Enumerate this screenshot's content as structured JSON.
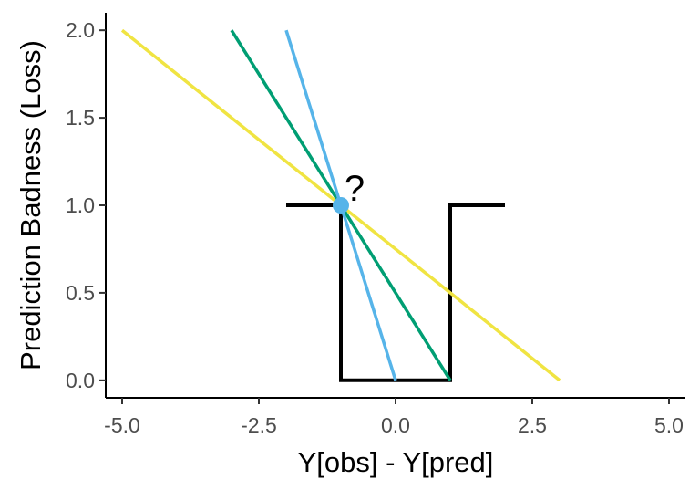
{
  "chart_data": {
    "type": "line",
    "title": "",
    "xlabel": "Y[obs] - Y[pred]",
    "ylabel": "Prediction Badness (Loss)",
    "xlim": [
      -5.3,
      5.3
    ],
    "ylim": [
      -0.1,
      2.1
    ],
    "xticks": [
      -5.0,
      -2.5,
      0.0,
      2.5,
      5.0
    ],
    "xtick_labels": [
      "-5.0",
      "-2.5",
      "0.0",
      "2.5",
      "5.0"
    ],
    "yticks": [
      0.0,
      0.5,
      1.0,
      1.5,
      2.0
    ],
    "ytick_labels": [
      "0.0",
      "0.5",
      "1.0",
      "1.5",
      "2.0"
    ],
    "grid": false,
    "legend": "none",
    "series": [
      {
        "color": "#000000",
        "x": [
          -2,
          -1,
          -1,
          1,
          1,
          2
        ],
        "y": [
          1,
          1,
          0,
          0,
          1,
          1
        ]
      },
      {
        "color": "#F0E442",
        "x": [
          -5,
          3
        ],
        "y": [
          2,
          0
        ]
      },
      {
        "color": "#009E73",
        "x": [
          -3,
          1
        ],
        "y": [
          2,
          0
        ]
      },
      {
        "color": "#56B4E9",
        "x": [
          -2,
          0
        ],
        "y": [
          2,
          0
        ]
      }
    ],
    "point": {
      "x": -1,
      "y": 1,
      "color": "#56B4E9"
    },
    "annotations": [
      {
        "text": "?",
        "x": -0.75,
        "y": 1.1
      }
    ]
  }
}
